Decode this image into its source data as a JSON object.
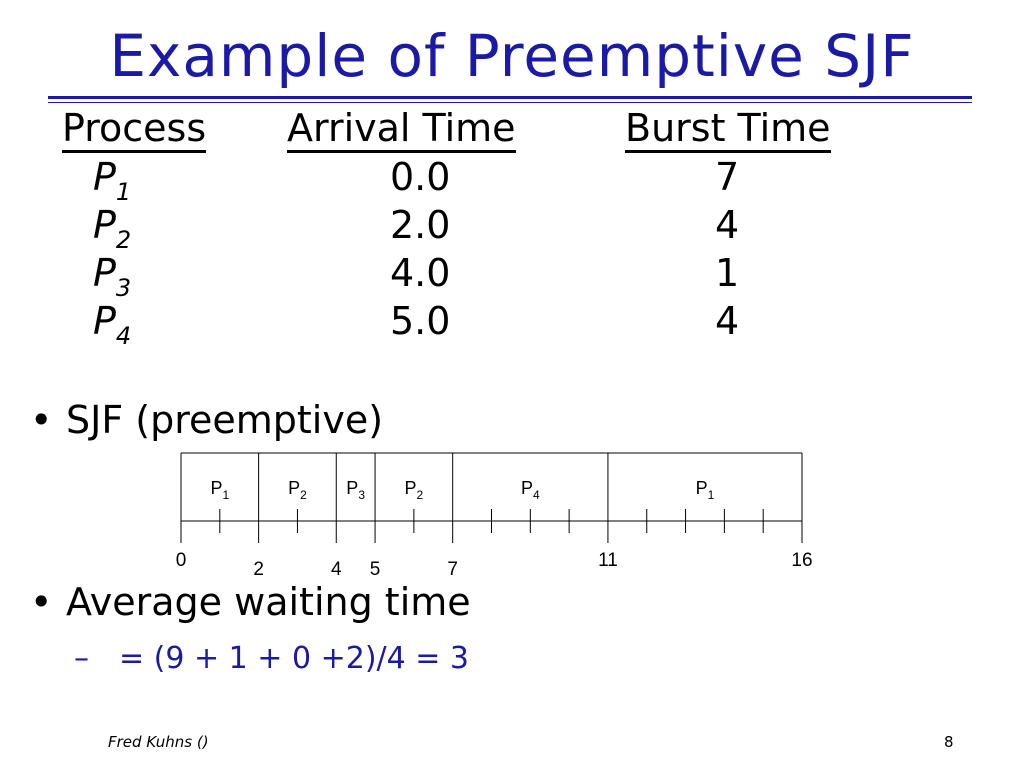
{
  "slide": {
    "title": "Example of Preemptive SJF",
    "headers": {
      "process": "Process",
      "arrival": "Arrival Time",
      "burst": "Burst Time"
    },
    "rows": [
      {
        "name": "P",
        "sub": "1",
        "arrival": "0.0",
        "burst": "7"
      },
      {
        "name": "P",
        "sub": "2",
        "arrival": "2.0",
        "burst": "4"
      },
      {
        "name": "P",
        "sub": "3",
        "arrival": "4.0",
        "burst": "1"
      },
      {
        "name": "P",
        "sub": "4",
        "arrival": "5.0",
        "burst": "4"
      }
    ],
    "bullet1": "SJF (preemptive)",
    "bullet2": "Average waiting time",
    "bullet2_sub": "= (9 + 1 + 0 +2)/4 = 3",
    "bullet_glyph": "•",
    "dash_glyph": "–",
    "footer_left": "Fred Kuhns ()",
    "page_number": "8",
    "accent_color": "#1a1aa6"
  },
  "gantt": {
    "segments": [
      {
        "label": "P",
        "sub": "1",
        "start": 0,
        "end": 2
      },
      {
        "label": "P",
        "sub": "2",
        "start": 2,
        "end": 4
      },
      {
        "label": "P",
        "sub": "3",
        "start": 4,
        "end": 5
      },
      {
        "label": "P",
        "sub": "2",
        "start": 5,
        "end": 7
      },
      {
        "label": "P",
        "sub": "4",
        "start": 7,
        "end": 11
      },
      {
        "label": "P",
        "sub": "1",
        "start": 11,
        "end": 16
      }
    ],
    "time_labels": [
      "0",
      "2",
      "4",
      "5",
      "7",
      "11",
      "16"
    ],
    "unit_ticks": [
      1,
      3,
      6,
      8,
      9,
      10,
      12,
      13,
      14,
      15
    ]
  }
}
